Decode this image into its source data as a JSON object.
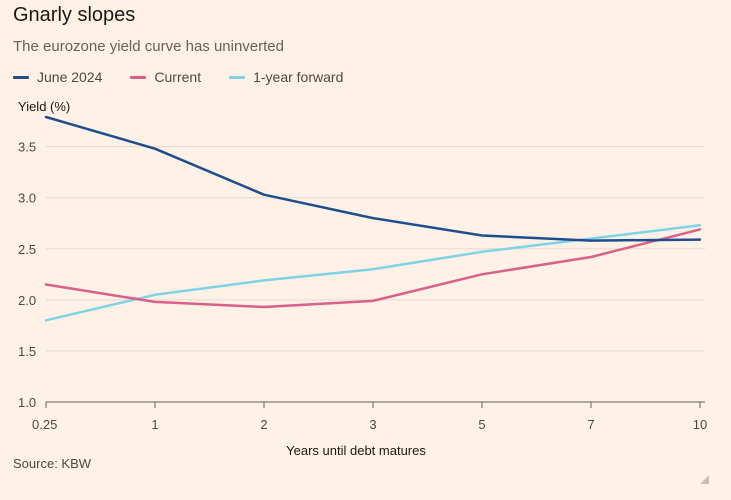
{
  "header": {
    "title": "Gnarly slopes",
    "subtitle": "The eurozone yield curve has uninverted"
  },
  "legend": [
    {
      "label": "June 2024",
      "color": "#1F4E8C"
    },
    {
      "label": "Current",
      "color": "#D9608A"
    },
    {
      "label": "1-year forward",
      "color": "#7FD3E6"
    }
  ],
  "source": "Source: KBW",
  "chart_data": {
    "type": "line",
    "title": "Gnarly slopes",
    "subtitle": "The eurozone yield curve has uninverted",
    "xlabel": "Years until debt matures",
    "ylabel": "Yield (%)",
    "categories": [
      "0.25",
      "1",
      "2",
      "3",
      "5",
      "7",
      "10"
    ],
    "ylim": [
      1.0,
      3.8
    ],
    "yticks": [
      "1.0",
      "1.5",
      "2.0",
      "2.5",
      "3.0",
      "3.5"
    ],
    "grid": true,
    "series": [
      {
        "name": "June 2024",
        "color": "#1F4E8C",
        "values": [
          3.79,
          3.48,
          3.03,
          2.8,
          2.63,
          2.58,
          2.59
        ]
      },
      {
        "name": "Current",
        "color": "#D9608A",
        "values": [
          2.15,
          1.98,
          1.93,
          1.99,
          2.25,
          2.42,
          2.69
        ]
      },
      {
        "name": "1-year forward",
        "color": "#7FD3E6",
        "values": [
          1.8,
          2.05,
          2.19,
          2.3,
          2.47,
          2.6,
          2.73
        ]
      }
    ]
  }
}
